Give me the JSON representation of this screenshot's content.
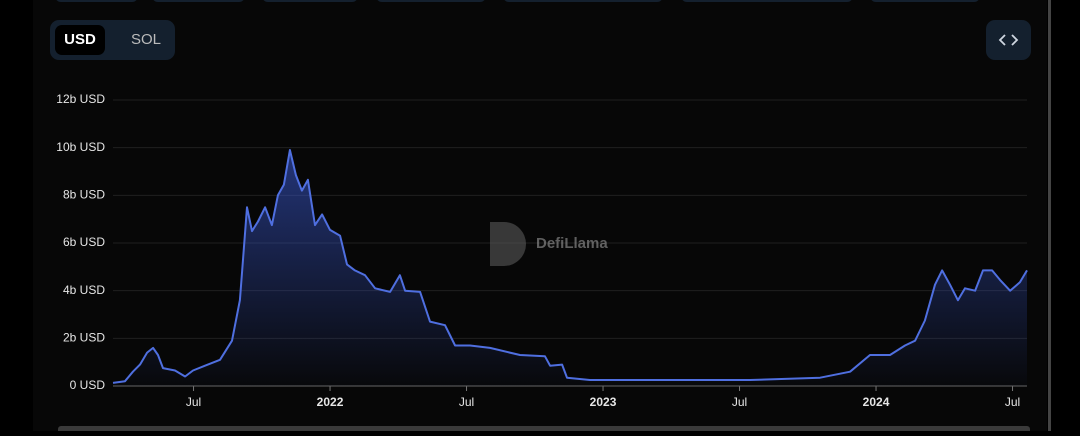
{
  "toggle": [
    "USD",
    "SOL"
  ],
  "watermark": "DefiLlama",
  "chart_data": {
    "type": "area",
    "color": "#4f6fe0",
    "grid": true,
    "x": [
      2021.205,
      2021.249,
      2021.278,
      2021.304,
      2021.33,
      2021.352,
      2021.37,
      2021.388,
      2021.432,
      2021.469,
      2021.498,
      2021.542,
      2021.597,
      2021.641,
      2021.67,
      2021.696,
      2021.714,
      2021.736,
      2021.762,
      2021.787,
      2021.809,
      2021.831,
      2021.853,
      2021.875,
      2021.897,
      2021.919,
      2021.945,
      2021.971,
      2022.0,
      2022.037,
      2022.062,
      2022.091,
      2022.128,
      2022.165,
      2022.22,
      2022.256,
      2022.275,
      2022.33,
      2022.366,
      2022.421,
      2022.458,
      2022.513,
      2022.586,
      2022.696,
      2022.787,
      2022.806,
      2022.85,
      2022.868,
      2022.952,
      2023.172,
      2023.538,
      2023.795,
      2023.905,
      2023.978,
      2024.051,
      2024.106,
      2024.143,
      2024.179,
      2024.216,
      2024.242,
      2024.271,
      2024.3,
      2024.326,
      2024.363,
      2024.392,
      2024.425,
      2024.454,
      2024.491,
      2024.527,
      2024.553
    ],
    "values": [
      0.13,
      0.2,
      0.6,
      0.9,
      1.4,
      1.6,
      1.3,
      0.75,
      0.65,
      0.4,
      0.65,
      0.85,
      1.1,
      1.9,
      3.6,
      7.5,
      6.5,
      6.9,
      7.5,
      6.75,
      8.0,
      8.45,
      9.9,
      8.85,
      8.2,
      8.65,
      6.75,
      7.2,
      6.55,
      6.3,
      5.1,
      4.85,
      4.65,
      4.1,
      3.95,
      4.65,
      4.0,
      3.95,
      2.7,
      2.55,
      1.7,
      1.7,
      1.6,
      1.3,
      1.25,
      0.85,
      0.9,
      0.35,
      0.25,
      0.25,
      0.25,
      0.35,
      0.6,
      1.3,
      1.3,
      1.7,
      1.9,
      2.75,
      4.25,
      4.85,
      4.25,
      3.6,
      4.1,
      4.0,
      4.85,
      4.85,
      4.45,
      4.0,
      4.35,
      4.85
    ],
    "xlim": [
      2021.205,
      2024.553
    ],
    "xticks": [
      {
        "value": 2021.5,
        "label": "Jul"
      },
      2022,
      {
        "value": 2022.5,
        "label": "Jul"
      },
      2023,
      {
        "value": 2023.5,
        "label": "Jul"
      },
      2024,
      {
        "value": 2024.5,
        "label": "Jul"
      }
    ],
    "ylim": [
      0,
      12
    ],
    "yticks": [
      {
        "value": 0,
        "label": "0 USD"
      },
      {
        "value": 2,
        "label": "2b USD"
      },
      {
        "value": 4,
        "label": "4b USD"
      },
      {
        "value": 6,
        "label": "6b USD"
      },
      {
        "value": 8,
        "label": "8b USD"
      },
      {
        "value": 10,
        "label": "10b USD"
      },
      {
        "value": 12,
        "label": "12b USD"
      }
    ]
  }
}
